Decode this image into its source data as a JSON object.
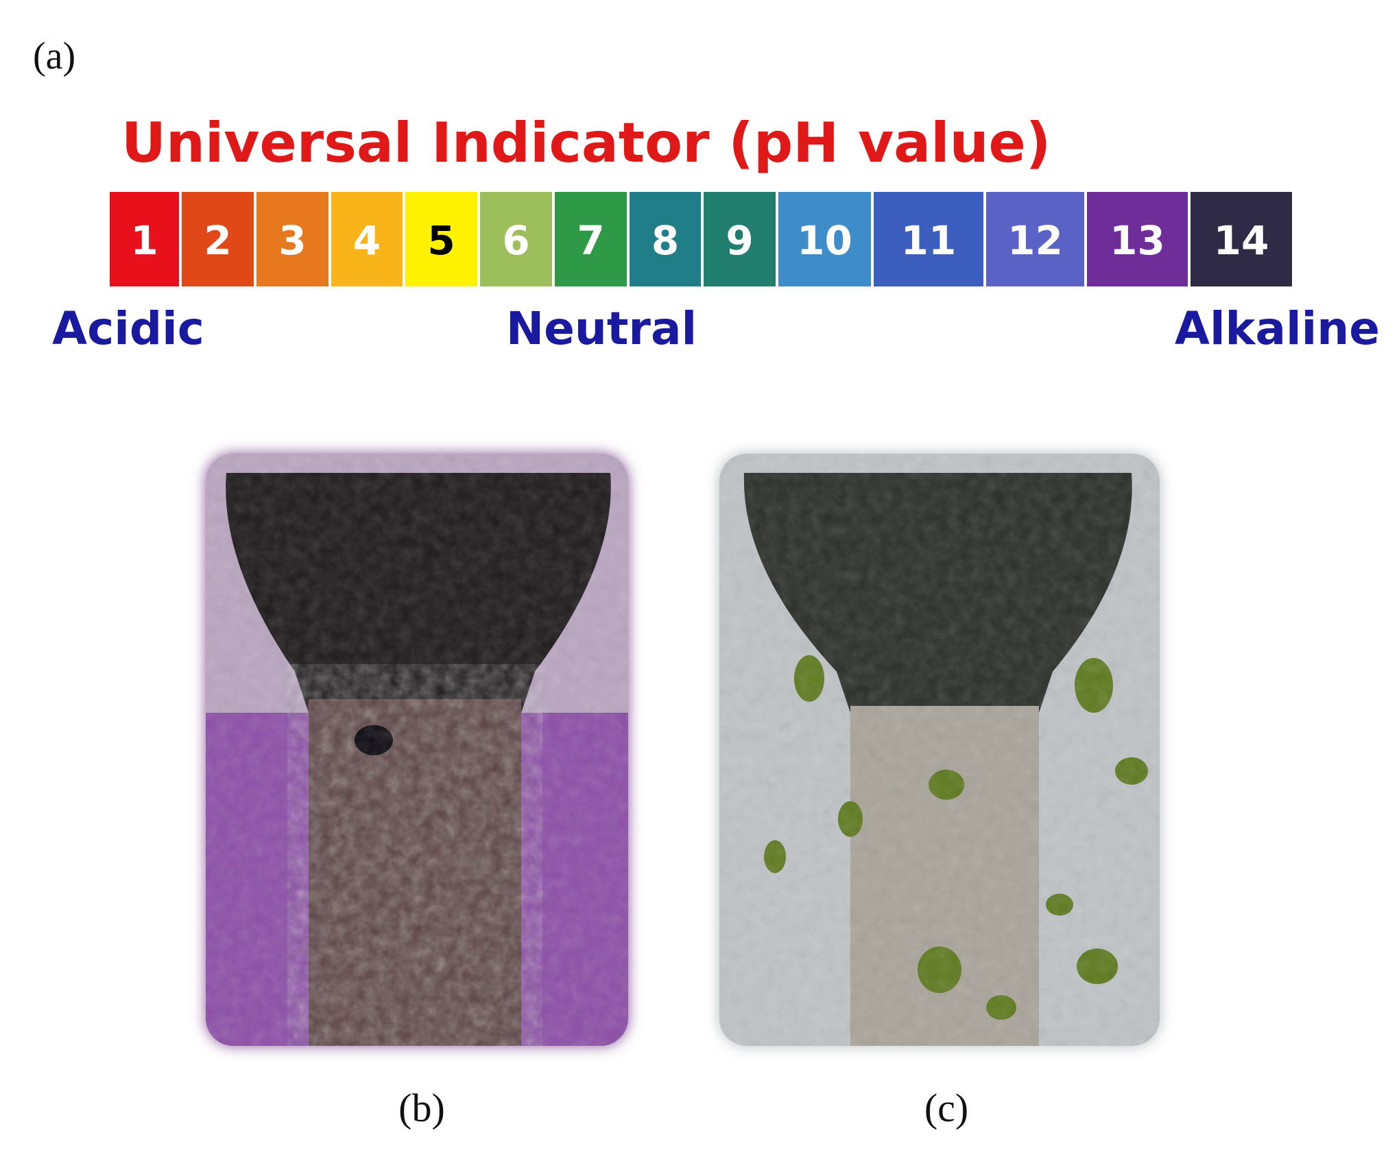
{
  "panel_a": {
    "label": "(a)",
    "title": "Universal Indicator (pH value)",
    "scale": [
      {
        "label": "1",
        "color": "#e8101a",
        "text_color": "#ffffff"
      },
      {
        "label": "2",
        "color": "#e04818",
        "text_color": "#ffffff"
      },
      {
        "label": "3",
        "color": "#e8781e",
        "text_color": "#ffffff"
      },
      {
        "label": "4",
        "color": "#f8b418",
        "text_color": "#ffffff"
      },
      {
        "label": "5",
        "color": "#fff200",
        "text_color": "#000000"
      },
      {
        "label": "6",
        "color": "#9cbf5c",
        "text_color": "#ffffff"
      },
      {
        "label": "7",
        "color": "#2e9a48",
        "text_color": "#ffffff"
      },
      {
        "label": "8",
        "color": "#1f7e88",
        "text_color": "#ffffff"
      },
      {
        "label": "9",
        "color": "#217e6e",
        "text_color": "#ffffff"
      },
      {
        "label": "10",
        "color": "#3f8ccb",
        "text_color": "#ffffff"
      },
      {
        "label": "11",
        "color": "#3c5fbf",
        "text_color": "#ffffff"
      },
      {
        "label": "12",
        "color": "#5a62c6",
        "text_color": "#ffffff"
      },
      {
        "label": "13",
        "color": "#6f2d9a",
        "text_color": "#ffffff"
      },
      {
        "label": "14",
        "color": "#2f2a45",
        "text_color": "#ffffff"
      }
    ],
    "acidic": "Acidic",
    "neutral": "Neutral",
    "alkaline": "Alkaline"
  },
  "panel_b": {
    "label": "(b)"
  },
  "panel_c": {
    "label": "(c)"
  }
}
